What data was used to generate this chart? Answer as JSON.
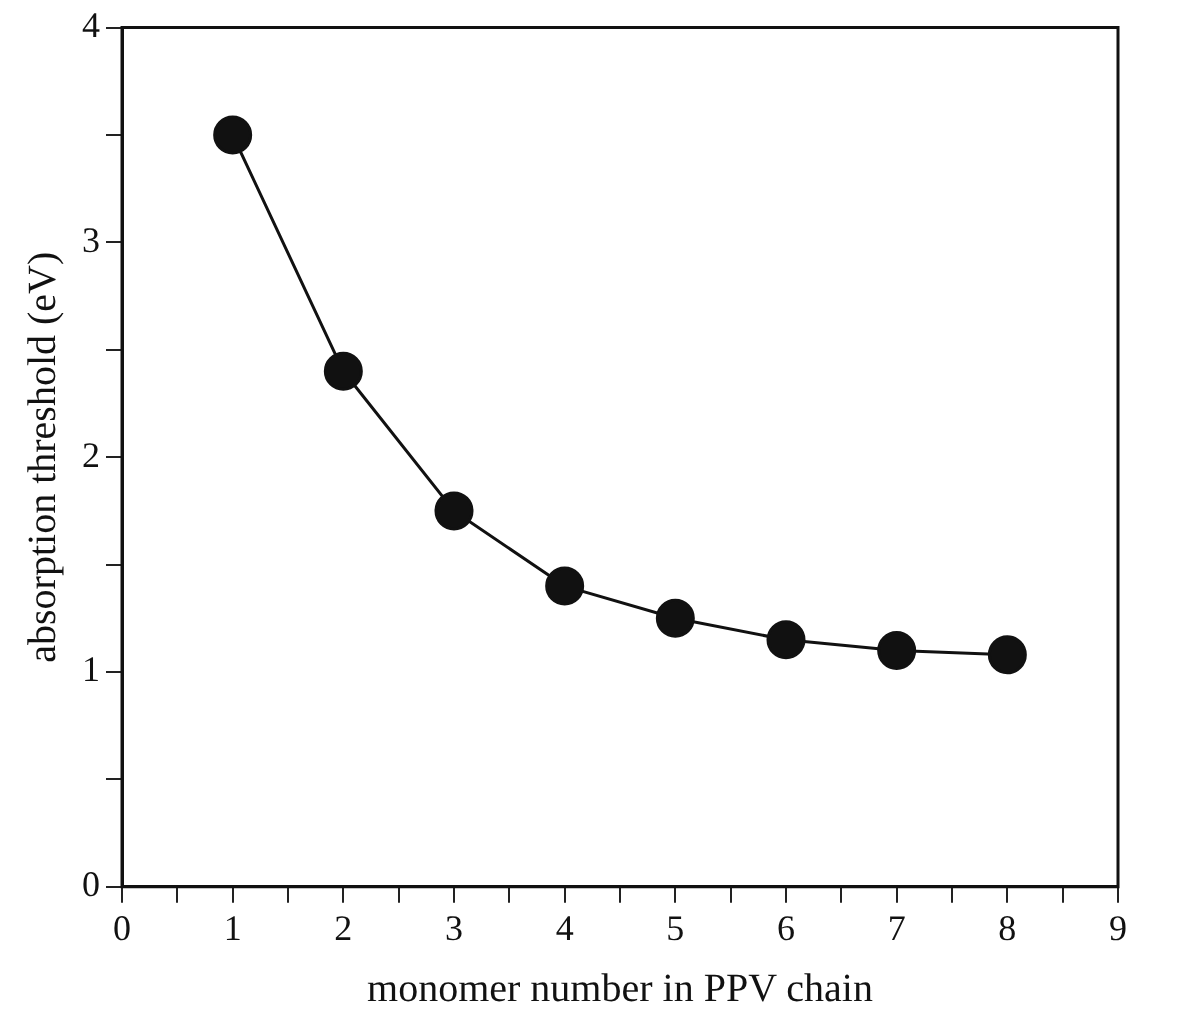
{
  "chart_data": {
    "type": "line",
    "xlabel": "monomer number in PPV chain",
    "ylabel": "absorption threshold (eV)",
    "x": [
      1,
      2,
      3,
      4,
      5,
      6,
      7,
      8
    ],
    "series": [
      {
        "color": "#111111",
        "values": [
          3.5,
          2.4,
          1.75,
          1.4,
          1.25,
          1.15,
          1.1,
          1.08
        ]
      }
    ],
    "xlim": [
      0,
      9
    ],
    "xticks": [
      0,
      {
        "value": 0.5,
        "label": null
      },
      1,
      {
        "value": 1.5,
        "label": null
      },
      2,
      {
        "value": 2.5,
        "label": null
      },
      3,
      {
        "value": 3.5,
        "label": null
      },
      4,
      {
        "value": 4.5,
        "label": null
      },
      5,
      {
        "value": 5.5,
        "label": null
      },
      6,
      {
        "value": 6.5,
        "label": null
      },
      7,
      {
        "value": 7.5,
        "label": null
      },
      8,
      {
        "value": 8.5,
        "label": null
      },
      9
    ],
    "ylim": [
      0,
      4
    ],
    "yticks": [
      0,
      {
        "value": 0.5,
        "label": null
      },
      1,
      {
        "value": 1.5,
        "label": null
      },
      2,
      {
        "value": 2.5,
        "label": null
      },
      3,
      {
        "value": 3.5,
        "label": null
      },
      4
    ],
    "grid": false,
    "legend": false,
    "marker": "circle",
    "line_style": "solid"
  }
}
